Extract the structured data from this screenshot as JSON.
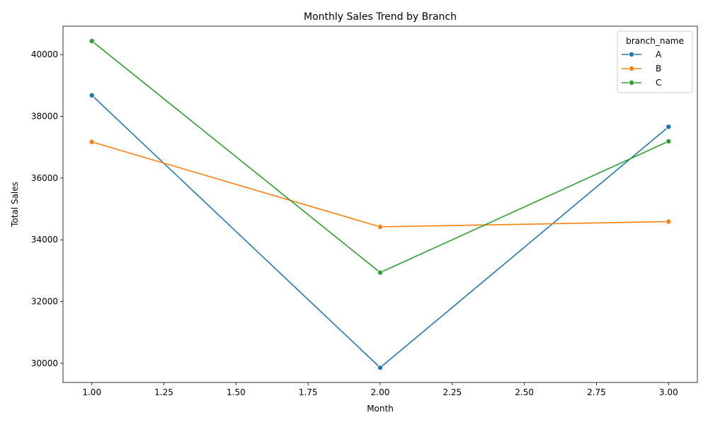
{
  "chart_data": {
    "type": "line",
    "title": "Monthly Sales Trend by Branch",
    "xlabel": "Month",
    "ylabel": "Total Sales",
    "x": [
      1.0,
      2.0,
      3.0
    ],
    "xlim": [
      0.9,
      3.1
    ],
    "ylim": [
      29380,
      40920
    ],
    "xticks": [
      1.0,
      1.25,
      1.5,
      1.75,
      2.0,
      2.25,
      2.5,
      2.75,
      3.0
    ],
    "xtick_labels": [
      "1.00",
      "1.25",
      "1.50",
      "1.75",
      "2.00",
      "2.25",
      "2.50",
      "2.75",
      "3.00"
    ],
    "yticks": [
      30000,
      32000,
      34000,
      36000,
      38000,
      40000
    ],
    "ytick_labels": [
      "30000",
      "32000",
      "34000",
      "36000",
      "38000",
      "40000"
    ],
    "grid": false,
    "legend": {
      "title": "branch_name",
      "placement": "top-right"
    },
    "series": [
      {
        "name": "A",
        "color": "#1f77b4",
        "marker": "circle",
        "values": [
          38680,
          29860,
          37660
        ]
      },
      {
        "name": "B",
        "color": "#ff7f0e",
        "marker": "circle",
        "values": [
          37170,
          34420,
          34590
        ]
      },
      {
        "name": "C",
        "color": "#2ca02c",
        "marker": "circle",
        "values": [
          40440,
          32940,
          37190
        ]
      }
    ]
  }
}
